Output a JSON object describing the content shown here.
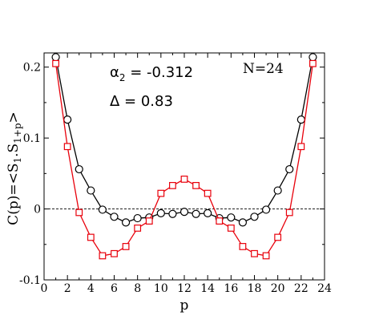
{
  "chart_data": {
    "type": "line",
    "xlabel": "p",
    "ylabel": "C(p)=<S_1.S_(1+p)>",
    "xlim": [
      0,
      24
    ],
    "ylim": [
      -0.1,
      0.22
    ],
    "xticks": [
      0,
      2,
      4,
      6,
      8,
      10,
      12,
      14,
      16,
      18,
      20,
      22,
      24
    ],
    "yticks": [
      -0.1,
      0,
      0.1,
      0.2
    ],
    "ytick_labels": [
      "-0.1",
      "0",
      "0.1",
      "0.2"
    ],
    "grid": false,
    "reference_line": {
      "y": 0,
      "style": "dashed"
    },
    "annotations": {
      "alpha_symbol": "α",
      "alpha_subscript": "2",
      "alpha_value": " = -0.312",
      "delta_text": "Δ = 0.83",
      "n_text": "N=24"
    },
    "series": [
      {
        "color": "#000000",
        "marker": "circle",
        "x": [
          1,
          2,
          3,
          4,
          5,
          6,
          7,
          8,
          9,
          10,
          11,
          12,
          13,
          14,
          15,
          16,
          17,
          18,
          19,
          20,
          21,
          22,
          23
        ],
        "values": [
          0.214,
          0.126,
          0.056,
          0.026,
          -0.001,
          -0.011,
          -0.019,
          -0.013,
          -0.012,
          -0.006,
          -0.007,
          -0.004,
          -0.007,
          -0.006,
          -0.013,
          -0.012,
          -0.019,
          -0.011,
          -0.001,
          0.026,
          0.056,
          0.126,
          0.214
        ]
      },
      {
        "color": "#e8000b",
        "marker": "square",
        "x": [
          1,
          2,
          3,
          4,
          5,
          6,
          7,
          8,
          9,
          10,
          11,
          12,
          13,
          14,
          15,
          16,
          17,
          18,
          19,
          20,
          21,
          22,
          23
        ],
        "values": [
          0.205,
          0.088,
          -0.005,
          -0.04,
          -0.066,
          -0.063,
          -0.053,
          -0.027,
          -0.017,
          0.022,
          0.033,
          0.042,
          0.033,
          0.022,
          -0.017,
          -0.027,
          -0.053,
          -0.063,
          -0.066,
          -0.04,
          -0.005,
          0.088,
          0.205
        ]
      }
    ]
  }
}
